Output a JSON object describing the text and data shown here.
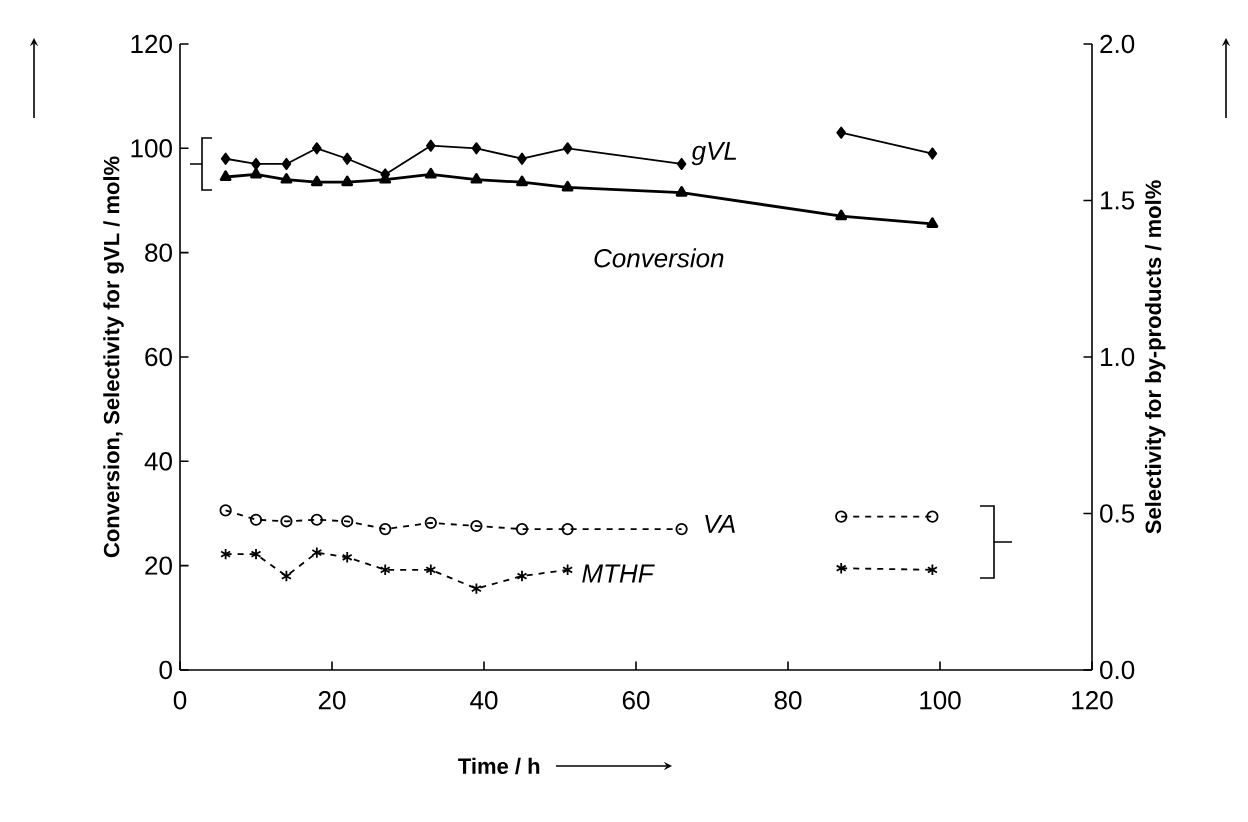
{
  "chart_data": {
    "type": "line",
    "xlabel": "Time / h",
    "ylabel": "Conversion, Selectivity for gVL / mol%",
    "y2label": "Selectivity for by-products / mol%",
    "xlim": [
      0,
      120
    ],
    "xticks": [
      0,
      20,
      40,
      60,
      80,
      100,
      120
    ],
    "ylim": [
      0,
      120
    ],
    "yticks": [
      0,
      20,
      40,
      60,
      80,
      100,
      120
    ],
    "y2lim": [
      0,
      2.0
    ],
    "y2ticks": [
      {
        "value": 0,
        "label": "0.0"
      },
      {
        "value": 0.5,
        "label": "0.5"
      },
      {
        "value": 1,
        "label": "1.0"
      },
      {
        "value": 1.5,
        "label": "1.5"
      },
      {
        "value": 2,
        "label": "2.0"
      }
    ],
    "grid": false,
    "series": [
      {
        "name": "gVL",
        "color": "#000000",
        "marker": "diamond",
        "line_style": "solid",
        "x": [
          6,
          10,
          14,
          18,
          22,
          27,
          33,
          39,
          45,
          51,
          66,
          76,
          87,
          99
        ],
        "values": [
          98,
          97,
          97,
          100,
          98,
          95,
          100.5,
          100,
          98,
          100,
          97,
          null,
          103,
          99
        ]
      },
      {
        "name": "Conversion",
        "color": "#000000",
        "marker": "triangle",
        "line_style": "solid",
        "x": [
          6,
          10,
          14,
          18,
          22,
          27,
          33,
          39,
          45,
          51,
          66,
          87,
          99
        ],
        "values": [
          94.5,
          95,
          94,
          93.5,
          93.5,
          94,
          95,
          94,
          93.5,
          92.5,
          91.5,
          87,
          85.5
        ]
      },
      {
        "name": "VA",
        "color": "#000000",
        "marker": "circle",
        "line_style": "dashed",
        "axis": "y2",
        "x": [
          6,
          10,
          14,
          18,
          22,
          27,
          33,
          39,
          45,
          51,
          66,
          76,
          87,
          99
        ],
        "values": [
          0.51,
          0.48,
          0.475,
          0.48,
          0.475,
          0.45,
          0.47,
          0.46,
          0.45,
          0.45,
          0.45,
          null,
          0.49,
          0.49
        ]
      },
      {
        "name": "MTHF",
        "color": "#000000",
        "marker": "cross",
        "line_style": "dashed",
        "axis": "y2",
        "x": [
          6,
          10,
          14,
          18,
          22,
          27,
          33,
          39,
          45,
          51,
          70,
          87,
          99
        ],
        "values": [
          0.37,
          0.37,
          0.3,
          0.375,
          0.36,
          0.32,
          0.32,
          0.26,
          0.3,
          0.32,
          null,
          0.325,
          0.32
        ]
      }
    ]
  }
}
